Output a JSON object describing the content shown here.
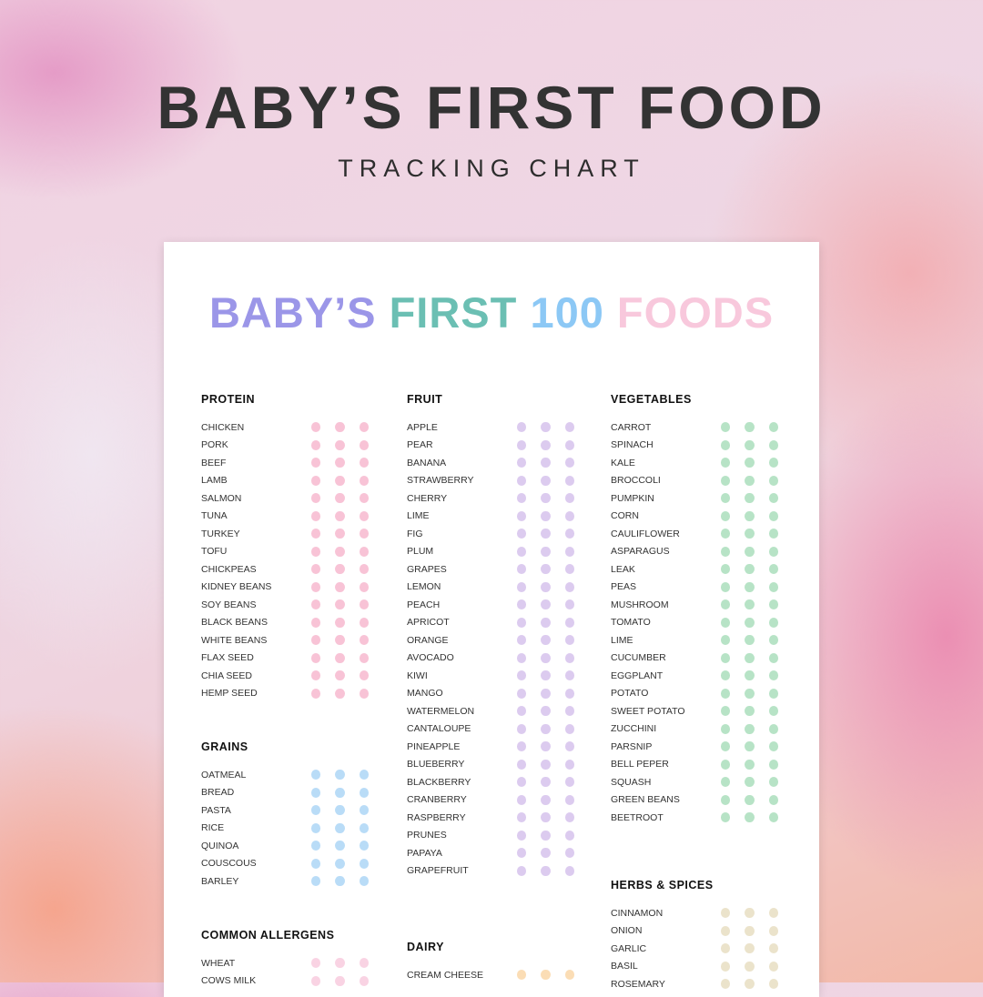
{
  "header": {
    "title": "BABY’S FIRST FOOD",
    "subtitle": "TRACKING CHART"
  },
  "card": {
    "title_parts": [
      {
        "text": "BABY’S",
        "color": "#9b96e8"
      },
      {
        "text": "FIRST",
        "color": "#6bbfb3"
      },
      {
        "text": "100",
        "color": "#8cc8f5"
      },
      {
        "text": "FOODS",
        "color": "#f8c8dc"
      }
    ]
  },
  "sections": [
    {
      "name": "PROTEIN",
      "color": "#f8c3d6",
      "items": [
        "CHICKEN",
        "PORK",
        "BEEF",
        "LAMB",
        "SALMON",
        "TUNA",
        "TURKEY",
        "TOFU",
        "CHICKPEAS",
        "KIDNEY BEANS",
        "SOY BEANS",
        "BLACK BEANS",
        "WHITE BEANS",
        "FLAX SEED",
        "CHIA SEED",
        "HEMP SEED"
      ]
    },
    {
      "name": "GRAINS",
      "color": "#b9dcf7",
      "items": [
        "OATMEAL",
        "BREAD",
        "PASTA",
        "RICE",
        "QUINOA",
        "COUSCOUS",
        "BARLEY"
      ]
    },
    {
      "name": "COMMON ALLERGENS",
      "color": "#f9d3e3",
      "items": [
        "WHEAT",
        "COWS MILK"
      ]
    },
    {
      "name": "FRUIT",
      "color": "#dccbef",
      "items": [
        "APPLE",
        "PEAR",
        "BANANA",
        "STRAWBERRY",
        "CHERRY",
        "LIME",
        "FIG",
        "PLUM",
        "GRAPES",
        "LEMON",
        "PEACH",
        "APRICOT",
        "ORANGE",
        "AVOCADO",
        "KIWI",
        "MANGO",
        "WATERMELON",
        "CANTALOUPE",
        "PINEAPPLE",
        "BLUEBERRY",
        "BLACKBERRY",
        "CRANBERRY",
        "RASPBERRY",
        "PRUNES",
        "PAPAYA",
        "GRAPEFRUIT"
      ]
    },
    {
      "name": "DAIRY",
      "color": "#fbddb5",
      "items": [
        "CREAM CHEESE"
      ]
    },
    {
      "name": "VEGETABLES",
      "color": "#b7e3c6",
      "items": [
        "CARROT",
        "SPINACH",
        "KALE",
        "BROCCOLI",
        "PUMPKIN",
        "CORN",
        "CAULIFLOWER",
        "ASPARAGUS",
        "LEAK",
        "PEAS",
        "MUSHROOM",
        "TOMATO",
        "LIME",
        "CUCUMBER",
        "EGGPLANT",
        "POTATO",
        "SWEET POTATO",
        "ZUCCHINI",
        "PARSNIP",
        "BELL PEPER",
        "SQUASH",
        "GREEN BEANS",
        "BEETROOT"
      ]
    },
    {
      "name": "HERBS & SPICES",
      "color": "#ebe3cb",
      "items": [
        "CINNAMON",
        "ONION",
        "GARLIC",
        "BASIL",
        "ROSEMARY"
      ]
    }
  ]
}
